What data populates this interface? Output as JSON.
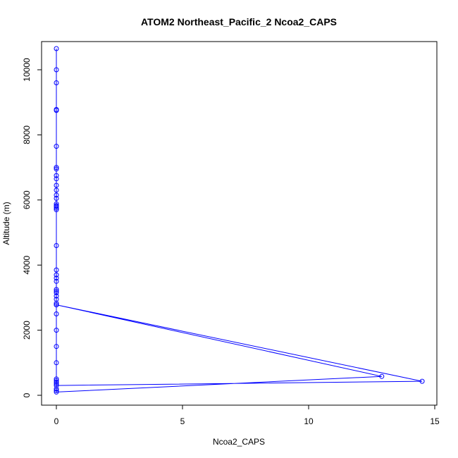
{
  "chart_data": {
    "type": "line",
    "title": "ATOM2 Northeast_Pacific_2 Ncoa2_CAPS",
    "xlabel": "Ncoa2_CAPS",
    "ylabel": "Altitude (m)",
    "xlim": [
      0,
      15
    ],
    "ylim": [
      0,
      10650
    ],
    "x_ticks": [
      0,
      5,
      10,
      15
    ],
    "y_ticks": [
      0,
      2000,
      4000,
      6000,
      8000,
      10000
    ],
    "grid": false,
    "color": "#0000ff",
    "series": [
      {
        "x": [
          0,
          0,
          0,
          0,
          0,
          0,
          0,
          0,
          0,
          0,
          0,
          0,
          0,
          0,
          0,
          0,
          0,
          0,
          0,
          0,
          0,
          0,
          0,
          0,
          0,
          0,
          0,
          0,
          0,
          0,
          0,
          0,
          0,
          0,
          0,
          0,
          0,
          0,
          0,
          0,
          14.5,
          0,
          12.9,
          0,
          0,
          0
        ],
        "y": [
          10650,
          10000,
          9600,
          8780,
          8750,
          7650,
          7000,
          6950,
          6750,
          6650,
          6450,
          6300,
          6150,
          6050,
          5880,
          5830,
          5800,
          5750,
          5700,
          4600,
          3850,
          3700,
          3600,
          3500,
          3250,
          3200,
          3150,
          3050,
          2950,
          2830,
          2780,
          2500,
          2000,
          1500,
          1000,
          500,
          450,
          400,
          350,
          300,
          430,
          2780,
          580,
          100,
          150,
          200
        ]
      }
    ]
  }
}
